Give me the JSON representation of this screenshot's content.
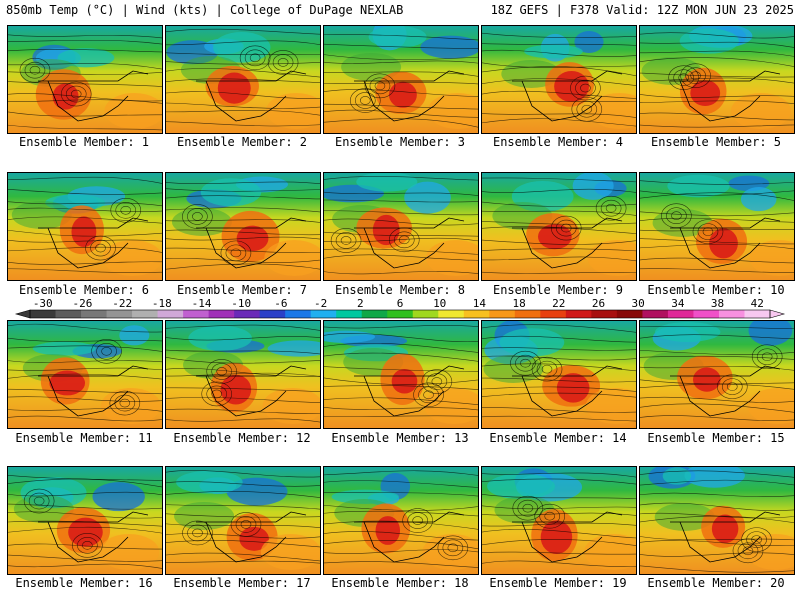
{
  "header": {
    "left": "850mb Temp (°C) | Wind (kts) | College of DuPage NEXLAB",
    "right": "18Z GEFS | F378 Valid: 12Z MON JUN 23 2025"
  },
  "colorbar": {
    "ticks": [
      "-30",
      "-26",
      "-22",
      "-18",
      "-14",
      "-10",
      "-6",
      "-2",
      "2",
      "6",
      "10",
      "14",
      "18",
      "22",
      "26",
      "30",
      "34",
      "38",
      "42"
    ],
    "colors": [
      "#3a3a3a",
      "#5c5c5c",
      "#787878",
      "#949494",
      "#b0b0b0",
      "#d0a8d8",
      "#c060d0",
      "#a030b8",
      "#6a2ab8",
      "#2a40c8",
      "#1a78e8",
      "#20b0f0",
      "#00c8a0",
      "#10a848",
      "#30c020",
      "#a0d820",
      "#f0e830",
      "#f8c020",
      "#f89818",
      "#f07010",
      "#e84010",
      "#d01818",
      "#a81010",
      "#880808",
      "#b01060",
      "#e02898",
      "#f050c8",
      "#f890e0",
      "#f8c8f0"
    ]
  },
  "members": [
    {
      "label": "Ensemble Member: 1"
    },
    {
      "label": "Ensemble Member: 2"
    },
    {
      "label": "Ensemble Member: 3"
    },
    {
      "label": "Ensemble Member: 4"
    },
    {
      "label": "Ensemble Member: 5"
    },
    {
      "label": "Ensemble Member: 6"
    },
    {
      "label": "Ensemble Member: 7"
    },
    {
      "label": "Ensemble Member: 8"
    },
    {
      "label": "Ensemble Member: 9"
    },
    {
      "label": "Ensemble Member: 10"
    },
    {
      "label": "Ensemble Member: 11"
    },
    {
      "label": "Ensemble Member: 12"
    },
    {
      "label": "Ensemble Member: 13"
    },
    {
      "label": "Ensemble Member: 14"
    },
    {
      "label": "Ensemble Member: 15"
    },
    {
      "label": "Ensemble Member: 16"
    },
    {
      "label": "Ensemble Member: 17"
    },
    {
      "label": "Ensemble Member: 18"
    },
    {
      "label": "Ensemble Member: 19"
    },
    {
      "label": "Ensemble Member: 20"
    }
  ]
}
